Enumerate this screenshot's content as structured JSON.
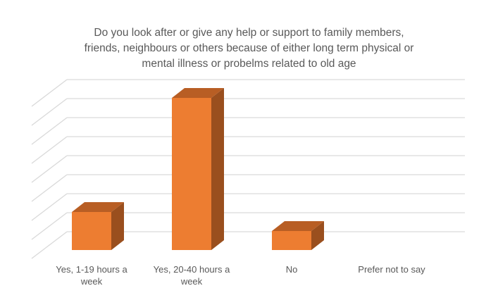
{
  "chart_data": {
    "type": "bar",
    "style": "3d-column",
    "title_lines": [
      "Do you look after or give any help or support to family members,",
      "friends, neighbours or others because of either long term physical or",
      "mental illness or probelms related to old age"
    ],
    "categories": [
      "Yes, 1-19 hours a week",
      "Yes, 20-40 hours a week",
      "No",
      "Prefer not to say"
    ],
    "values": [
      2,
      8,
      1,
      0
    ],
    "ylim": [
      0,
      8
    ],
    "grid": true,
    "xlabel": "",
    "ylabel": "",
    "colors": {
      "front": "#ED7D31",
      "top": "#B85E24",
      "side": "#9A4F1E",
      "grid": "#D9D9D9",
      "text": "#595959"
    }
  }
}
